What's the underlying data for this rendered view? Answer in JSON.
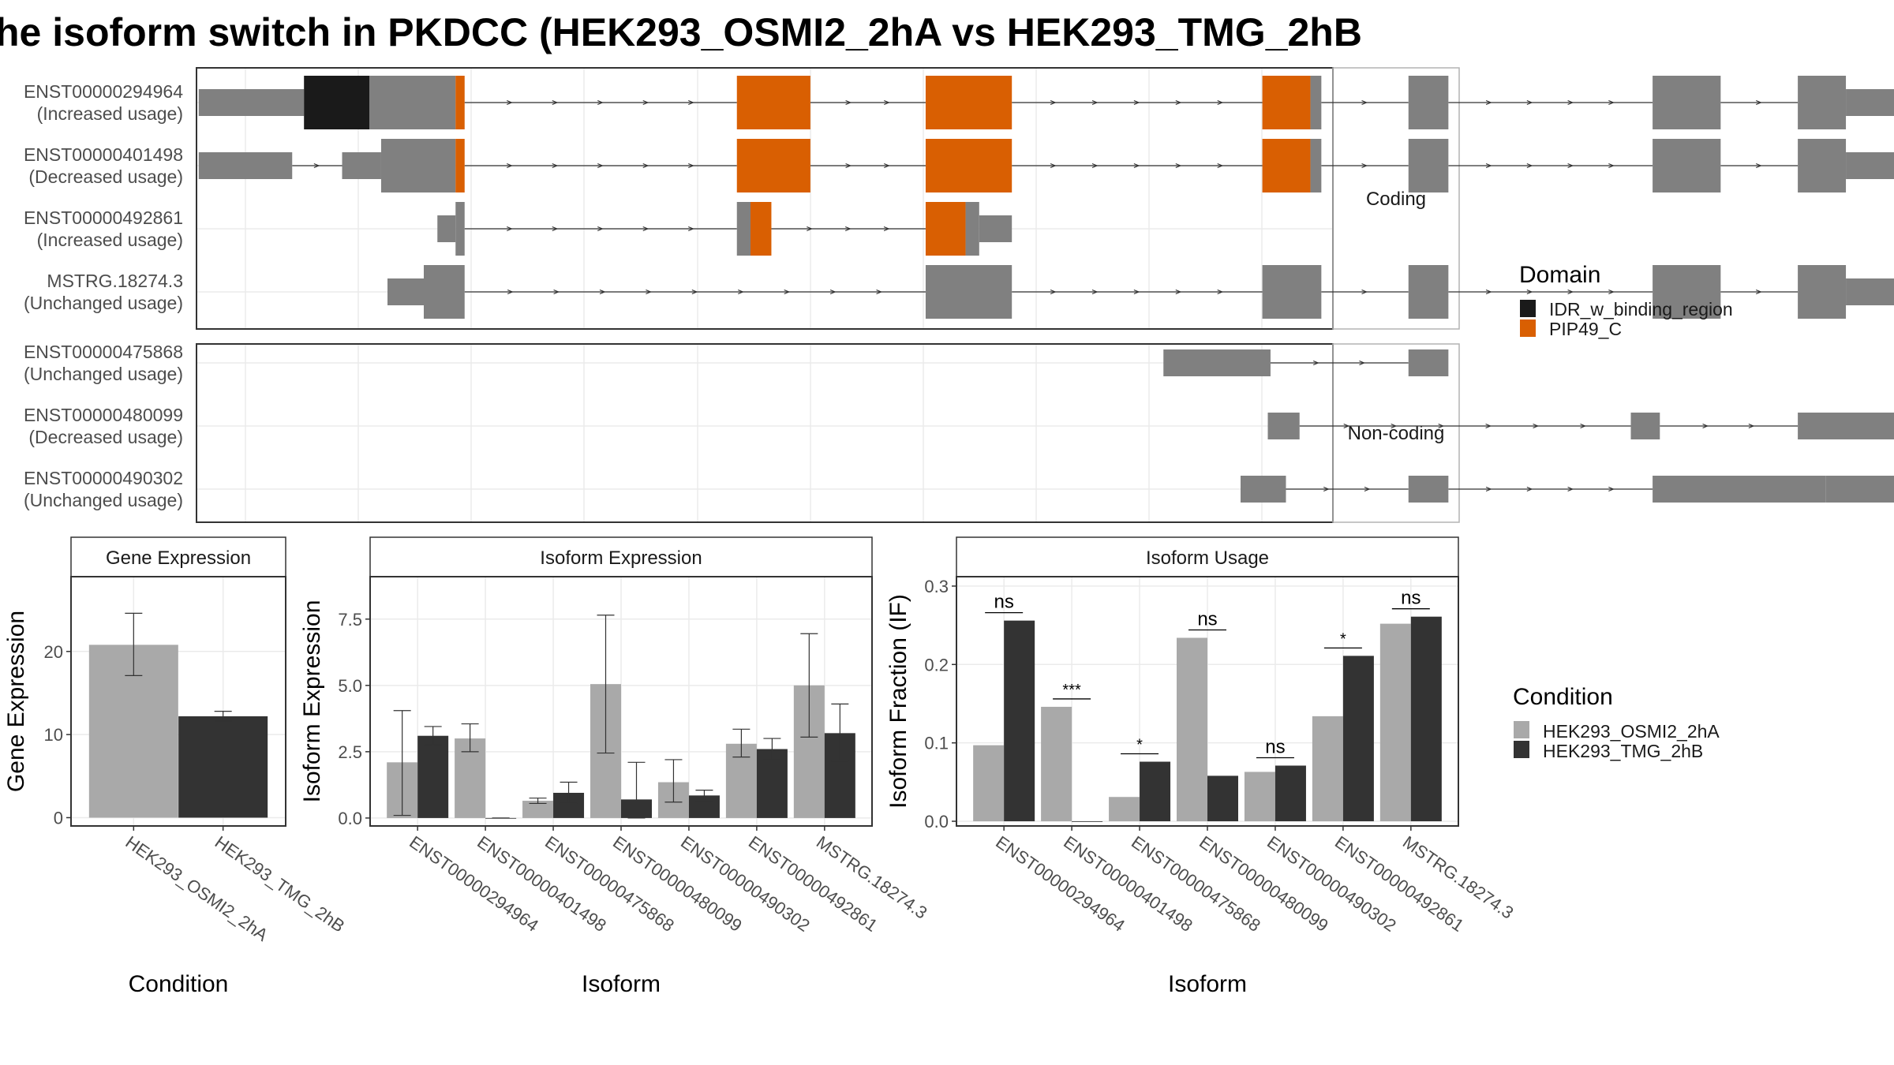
{
  "title": "he isoform switch in PKDCC (HEK293_OSMI2_2hA vs HEK293_TMG_2hB",
  "colors": {
    "exon": "#808080",
    "domain_IDR": "#1a1a1a",
    "domain_PIP49": "#d95f02",
    "cond_A": "#a9a9a9",
    "cond_B": "#333333",
    "panel_border": "#333333",
    "strip_border": "#b3b3b3",
    "grid": "#ebebeb"
  },
  "structure": {
    "panels": [
      {
        "label": "Coding",
        "transcripts": [
          {
            "id": "ENST00000294964",
            "usage": "(Increased usage)",
            "exons": [
              [
                -48.0,
                68.0,
                "utr",
                null
              ],
              [
                68.0,
                140.0,
                "cds",
                "IDR_w_binding_region"
              ],
              [
                140.0,
                235.0,
                "cds",
                null
              ],
              [
                235.0,
                245.0,
                "cds",
                "PIP49_C"
              ],
              [
                545.0,
                626.0,
                "cds",
                "PIP49_C"
              ],
              [
                753.0,
                848.0,
                "cds",
                "PIP49_C"
              ],
              [
                1124.0,
                1177.0,
                "cds",
                "PIP49_C"
              ],
              [
                1177.0,
                1189.0,
                "cds",
                null
              ],
              [
                1285.0,
                1329.0,
                "cds",
                null
              ],
              [
                1554.0,
                1629.0,
                "cds",
                null
              ],
              [
                1714.0,
                1767.0,
                "cds",
                null
              ],
              [
                1767.0,
                2011.0,
                "utr",
                null
              ]
            ]
          },
          {
            "id": "ENST00000401498",
            "usage": "(Decreased usage)",
            "exons": [
              [
                -48.0,
                55.0,
                "utr",
                null
              ],
              [
                110.0,
                153.0,
                "utr",
                null
              ],
              [
                153.0,
                235.0,
                "cds",
                null
              ],
              [
                235.0,
                245.0,
                "cds",
                "PIP49_C"
              ],
              [
                545.0,
                626.0,
                "cds",
                "PIP49_C"
              ],
              [
                753.0,
                848.0,
                "cds",
                "PIP49_C"
              ],
              [
                1124.0,
                1177.0,
                "cds",
                "PIP49_C"
              ],
              [
                1177.0,
                1189.0,
                "cds",
                null
              ],
              [
                1285.0,
                1329.0,
                "cds",
                null
              ],
              [
                1554.0,
                1629.0,
                "cds",
                null
              ],
              [
                1714.0,
                1767.0,
                "cds",
                null
              ],
              [
                1767.0,
                2011.0,
                "utr",
                null
              ]
            ]
          },
          {
            "id": "ENST00000492861",
            "usage": "(Increased usage)",
            "exons": [
              [
                215.0,
                235.0,
                "utr",
                null
              ],
              [
                235.0,
                245.0,
                "cds",
                null
              ],
              [
                545.0,
                560.0,
                "cds",
                null
              ],
              [
                560.0,
                583.0,
                "cds",
                "PIP49_C"
              ],
              [
                753.0,
                797.0,
                "cds",
                "PIP49_C"
              ],
              [
                797.0,
                812.0,
                "cds",
                null
              ],
              [
                812.0,
                848.0,
                "utr",
                null
              ]
            ]
          },
          {
            "id": "MSTRG.18274.3",
            "usage": "(Unchanged usage)",
            "exons": [
              [
                160.0,
                200.0,
                "utr",
                null
              ],
              [
                200.0,
                245.0,
                "cds",
                null
              ],
              [
                753.0,
                848.0,
                "cds",
                null
              ],
              [
                1124.0,
                1189.0,
                "cds",
                null
              ],
              [
                1285.0,
                1329.0,
                "cds",
                null
              ],
              [
                1554.0,
                1629.0,
                "cds",
                null
              ],
              [
                1714.0,
                1767.0,
                "cds",
                null
              ],
              [
                1767.0,
                2011.0,
                "utr",
                null
              ]
            ]
          }
        ]
      },
      {
        "label": "Non-coding",
        "transcripts": [
          {
            "id": "ENST00000475868",
            "usage": "(Unchanged usage)",
            "exons": [
              [
                1015.0,
                1133.0,
                "utr",
                null
              ],
              [
                1285.0,
                1329.0,
                "utr",
                null
              ]
            ]
          },
          {
            "id": "ENST00000480099",
            "usage": "(Decreased usage)",
            "exons": [
              [
                1130.0,
                1165.0,
                "utr",
                null
              ],
              [
                1530.0,
                1562.0,
                "utr",
                null
              ],
              [
                1714.0,
                1880.0,
                "utr",
                null
              ],
              [
                1880.0,
                1916.0,
                "utr",
                null
              ],
              [
                1916.0,
                2011.0,
                "utr",
                null
              ]
            ]
          },
          {
            "id": "ENST00000490302",
            "usage": "(Unchanged usage)",
            "exons": [
              [
                1100.0,
                1150.0,
                "utr",
                null
              ],
              [
                1285.0,
                1329.0,
                "utr",
                null
              ],
              [
                1554.0,
                1680.0,
                "utr",
                null
              ],
              [
                1680.0,
                1745.0,
                "utr",
                null
              ],
              [
                1745.0,
                2011.0,
                "utr",
                null
              ]
            ]
          }
        ]
      }
    ]
  },
  "chart_data": [
    {
      "type": "bar",
      "title": "Gene Expression",
      "xlabel": "Condition",
      "ylabel": "Gene Expression",
      "ylim": [
        -1,
        29
      ],
      "yticks": [
        0,
        10,
        20
      ],
      "categories": [
        "HEK293_OSMI2_2hA",
        "HEK293_TMG_2hB"
      ],
      "values": [
        20.8,
        12.2
      ],
      "errors": [
        [
          17.1,
          24.6
        ],
        [
          11.6,
          12.8
        ]
      ]
    },
    {
      "type": "bar",
      "title": "Isoform Expression",
      "xlabel": "Isoform",
      "ylabel": "Isoform Expression",
      "ylim": [
        -0.3,
        9.1
      ],
      "yticks": [
        0.0,
        2.5,
        5.0,
        7.5
      ],
      "categories": [
        "ENST00000294964",
        "ENST00000401498",
        "ENST00000475868",
        "ENST00000480099",
        "ENST00000490302",
        "ENST00000492861",
        "MSTRG.18274.3"
      ],
      "series": [
        {
          "name": "HEK293_OSMI2_2hA",
          "values": [
            2.1,
            3.0,
            0.65,
            5.05,
            1.35,
            2.8,
            5.0
          ],
          "errors": [
            [
              0.1,
              4.05
            ],
            [
              2.5,
              3.55
            ],
            [
              0.55,
              0.75
            ],
            [
              2.45,
              7.65
            ],
            [
              0.6,
              2.2
            ],
            [
              2.3,
              3.35
            ],
            [
              3.05,
              6.95
            ]
          ]
        },
        {
          "name": "HEK293_TMG_2hB",
          "values": [
            3.1,
            0.0,
            0.95,
            0.7,
            0.85,
            2.6,
            3.2
          ],
          "errors": [
            [
              2.75,
              3.45
            ],
            [
              0.0,
              0.0
            ],
            [
              0.55,
              1.35
            ],
            [
              0.0,
              2.1
            ],
            [
              0.65,
              1.05
            ],
            [
              2.2,
              3.0
            ],
            [
              2.15,
              4.3
            ]
          ]
        }
      ]
    },
    {
      "type": "bar",
      "title": "Isoform Usage",
      "xlabel": "Isoform",
      "ylabel": "Isoform Fraction (IF)",
      "ylim": [
        -0.006,
        0.312
      ],
      "yticks": [
        0.0,
        0.1,
        0.2,
        0.3
      ],
      "categories": [
        "ENST00000294964",
        "ENST00000401498",
        "ENST00000475868",
        "ENST00000480099",
        "ENST00000490302",
        "ENST00000492861",
        "MSTRG.18274.3"
      ],
      "series": [
        {
          "name": "HEK293_OSMI2_2hA",
          "values": [
            0.097,
            0.146,
            0.031,
            0.234,
            0.063,
            0.134,
            0.252
          ]
        },
        {
          "name": "HEK293_TMG_2hB",
          "values": [
            0.256,
            0.0,
            0.076,
            0.058,
            0.071,
            0.211,
            0.261
          ]
        }
      ],
      "significance": [
        "ns",
        "***",
        "*",
        "ns",
        "ns",
        "*",
        "ns"
      ]
    }
  ],
  "legends": {
    "domain": {
      "title": "Domain",
      "items": [
        "IDR_w_binding_region",
        "PIP49_C"
      ]
    },
    "condition": {
      "title": "Condition",
      "items": [
        "HEK293_OSMI2_2hA",
        "HEK293_TMG_2hB"
      ]
    }
  }
}
